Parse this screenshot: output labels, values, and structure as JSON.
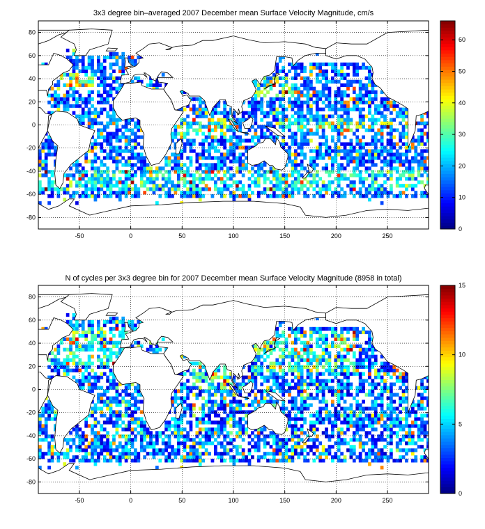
{
  "chart_data": [
    {
      "type": "heatmap",
      "title": "3x3 degree bin–averaged 2007 December mean Surface Velocity Magnitude, cm/s",
      "xlabel": "",
      "ylabel": "",
      "xlim": [
        -90,
        290
      ],
      "ylim": [
        -90,
        90
      ],
      "x_ticks": [
        -50,
        0,
        50,
        100,
        150,
        200,
        250
      ],
      "y_ticks": [
        80,
        60,
        40,
        20,
        0,
        -20,
        -40,
        -60,
        -80
      ],
      "grid": true,
      "colorbar": {
        "min": 0,
        "max": 66,
        "ticks": [
          0,
          10,
          20,
          30,
          40,
          50,
          60
        ],
        "colormap": "jet"
      },
      "bin_size_deg": 3,
      "mode": "velocity"
    },
    {
      "type": "heatmap",
      "title": "N of cycles per 3x3 degree bin for 2007 December mean Surface Velocity Magnitude (8958 in total)",
      "xlabel": "",
      "ylabel": "",
      "xlim": [
        -90,
        290
      ],
      "ylim": [
        -90,
        90
      ],
      "x_ticks": [
        -50,
        0,
        50,
        100,
        150,
        200,
        250
      ],
      "y_ticks": [
        80,
        60,
        40,
        20,
        0,
        -20,
        -40,
        -60,
        -80
      ],
      "grid": true,
      "colorbar": {
        "min": 0,
        "max": 15,
        "ticks": [
          0,
          5,
          10,
          15
        ],
        "colormap": "jet"
      },
      "bin_size_deg": 3,
      "mode": "count"
    }
  ],
  "colors": {
    "background": "#ffffff",
    "axis": "#000000",
    "coastline": "#000000",
    "grid": "#000000"
  }
}
